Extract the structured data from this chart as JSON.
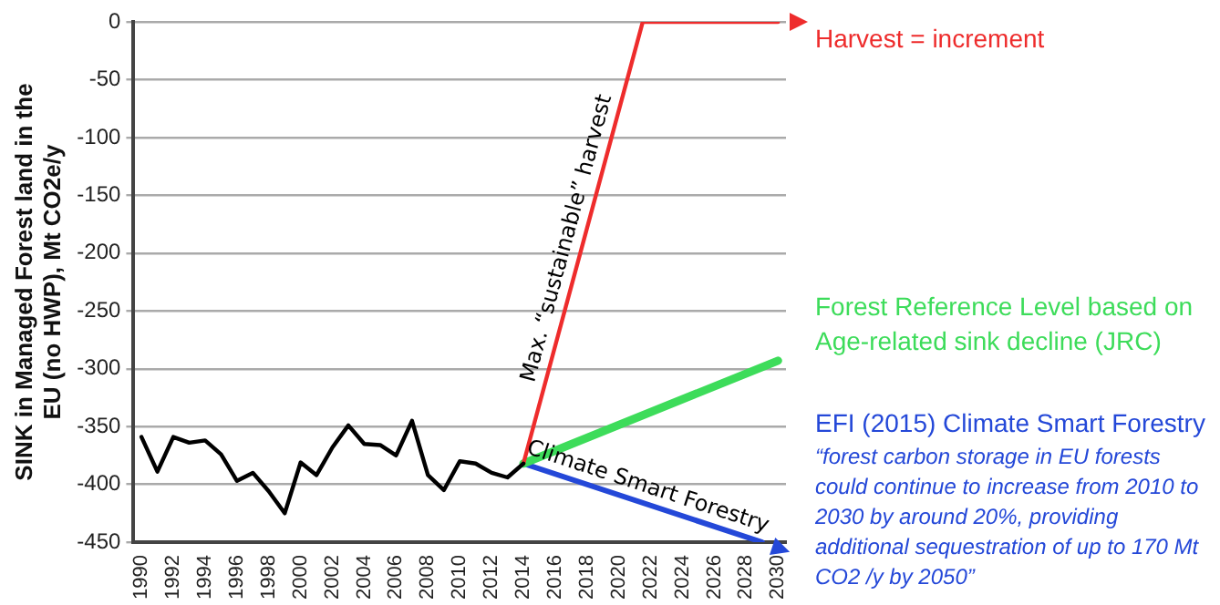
{
  "chart_data": {
    "type": "line",
    "ylabel": "SINK in Managed Forest land in the EU (no HWP), Mt CO2e/y",
    "xlim": [
      1989.5,
      2030.5
    ],
    "xticks": [
      1990,
      1992,
      1994,
      1996,
      1998,
      2000,
      2002,
      2004,
      2006,
      2008,
      2010,
      2012,
      2014,
      2016,
      2018,
      2020,
      2022,
      2024,
      2026,
      2028,
      2030
    ],
    "ylim": [
      -450,
      0
    ],
    "yticks": [
      -450,
      -400,
      -350,
      -300,
      -250,
      -200,
      -150,
      -100,
      -50,
      0
    ],
    "grid": "y",
    "legend": "right",
    "marker": "none",
    "line_style": "solid",
    "series": [
      {
        "color": "#000000",
        "x": [
          1990,
          1991,
          1992,
          1993,
          1994,
          1995,
          1996,
          1997,
          1998,
          1999,
          2000,
          2001,
          2002,
          2003,
          2004,
          2005,
          2006,
          2007,
          2008,
          2009,
          2010,
          2011,
          2012,
          2013,
          2014
        ],
        "values": [
          -359,
          -389,
          -359,
          -364,
          -362,
          -374,
          -397,
          -390,
          -406,
          -425,
          -381,
          -392,
          -368,
          -349,
          -365,
          -366,
          -375,
          -345,
          -392,
          -405,
          -380,
          -382,
          -390,
          -394,
          -382
        ]
      },
      {
        "name": "Harvest = increment",
        "color": "#ee2c2c",
        "x": [
          2014,
          2021.5,
          2030
        ],
        "values": [
          -382,
          0,
          0
        ]
      },
      {
        "name": "Forest Reference Level based on Age-related sink decline (JRC)",
        "color": "#3ddc5a",
        "x": [
          2014,
          2030
        ],
        "values": [
          -382,
          -293
        ]
      },
      {
        "name": "EFI (2015) Climate Smart Forestry",
        "color": "#2448d8",
        "x": [
          2014,
          2029
        ],
        "values": [
          -382,
          -450
        ]
      }
    ],
    "annotations": [
      "Max. “sustainable” harvest",
      "Climate Smart Forestry",
      "“forest carbon storage in EU forests could continue to increase from 2010 to 2030 by around 20%, providing additional sequestration of up to 170 Mt CO2 /y by 2050”"
    ]
  }
}
